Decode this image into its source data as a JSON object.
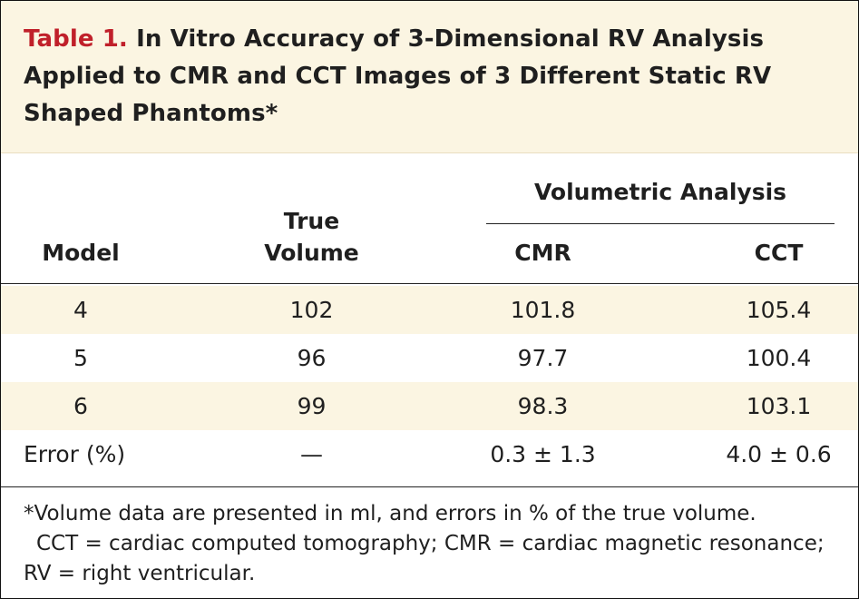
{
  "title": {
    "table_number": "Table 1.",
    "text": "In Vitro Accuracy of 3-Dimensional RV Analysis Applied to CMR and CCT Images of 3 Different Static RV Shaped Phantoms*"
  },
  "table": {
    "headers": {
      "model": "Model",
      "true_volume_line1": "True",
      "true_volume_line2": "Volume",
      "group": "Volumetric Analysis",
      "cmr": "CMR",
      "cct": "CCT"
    },
    "rows": [
      {
        "model": "4",
        "true_volume": "102",
        "cmr": "101.8",
        "cct": "105.4"
      },
      {
        "model": "5",
        "true_volume": "96",
        "cmr": "97.7",
        "cct": "100.4"
      },
      {
        "model": "6",
        "true_volume": "99",
        "cmr": "98.3",
        "cct": "103.1"
      }
    ],
    "error_row": {
      "label": "Error (%)",
      "true_volume": "—",
      "cmr": "0.3 ± 1.3",
      "cct": "4.0 ± 0.6"
    }
  },
  "footnote": {
    "line1": "*Volume data are presented in ml, and errors in % of the true volume.",
    "line2": "CCT = cardiac computed tomography; CMR = cardiac magnetic resonance;",
    "line3": "RV = right ventricular."
  },
  "colors": {
    "accent_red": "#c0202a",
    "shade": "#fbf5e2"
  }
}
